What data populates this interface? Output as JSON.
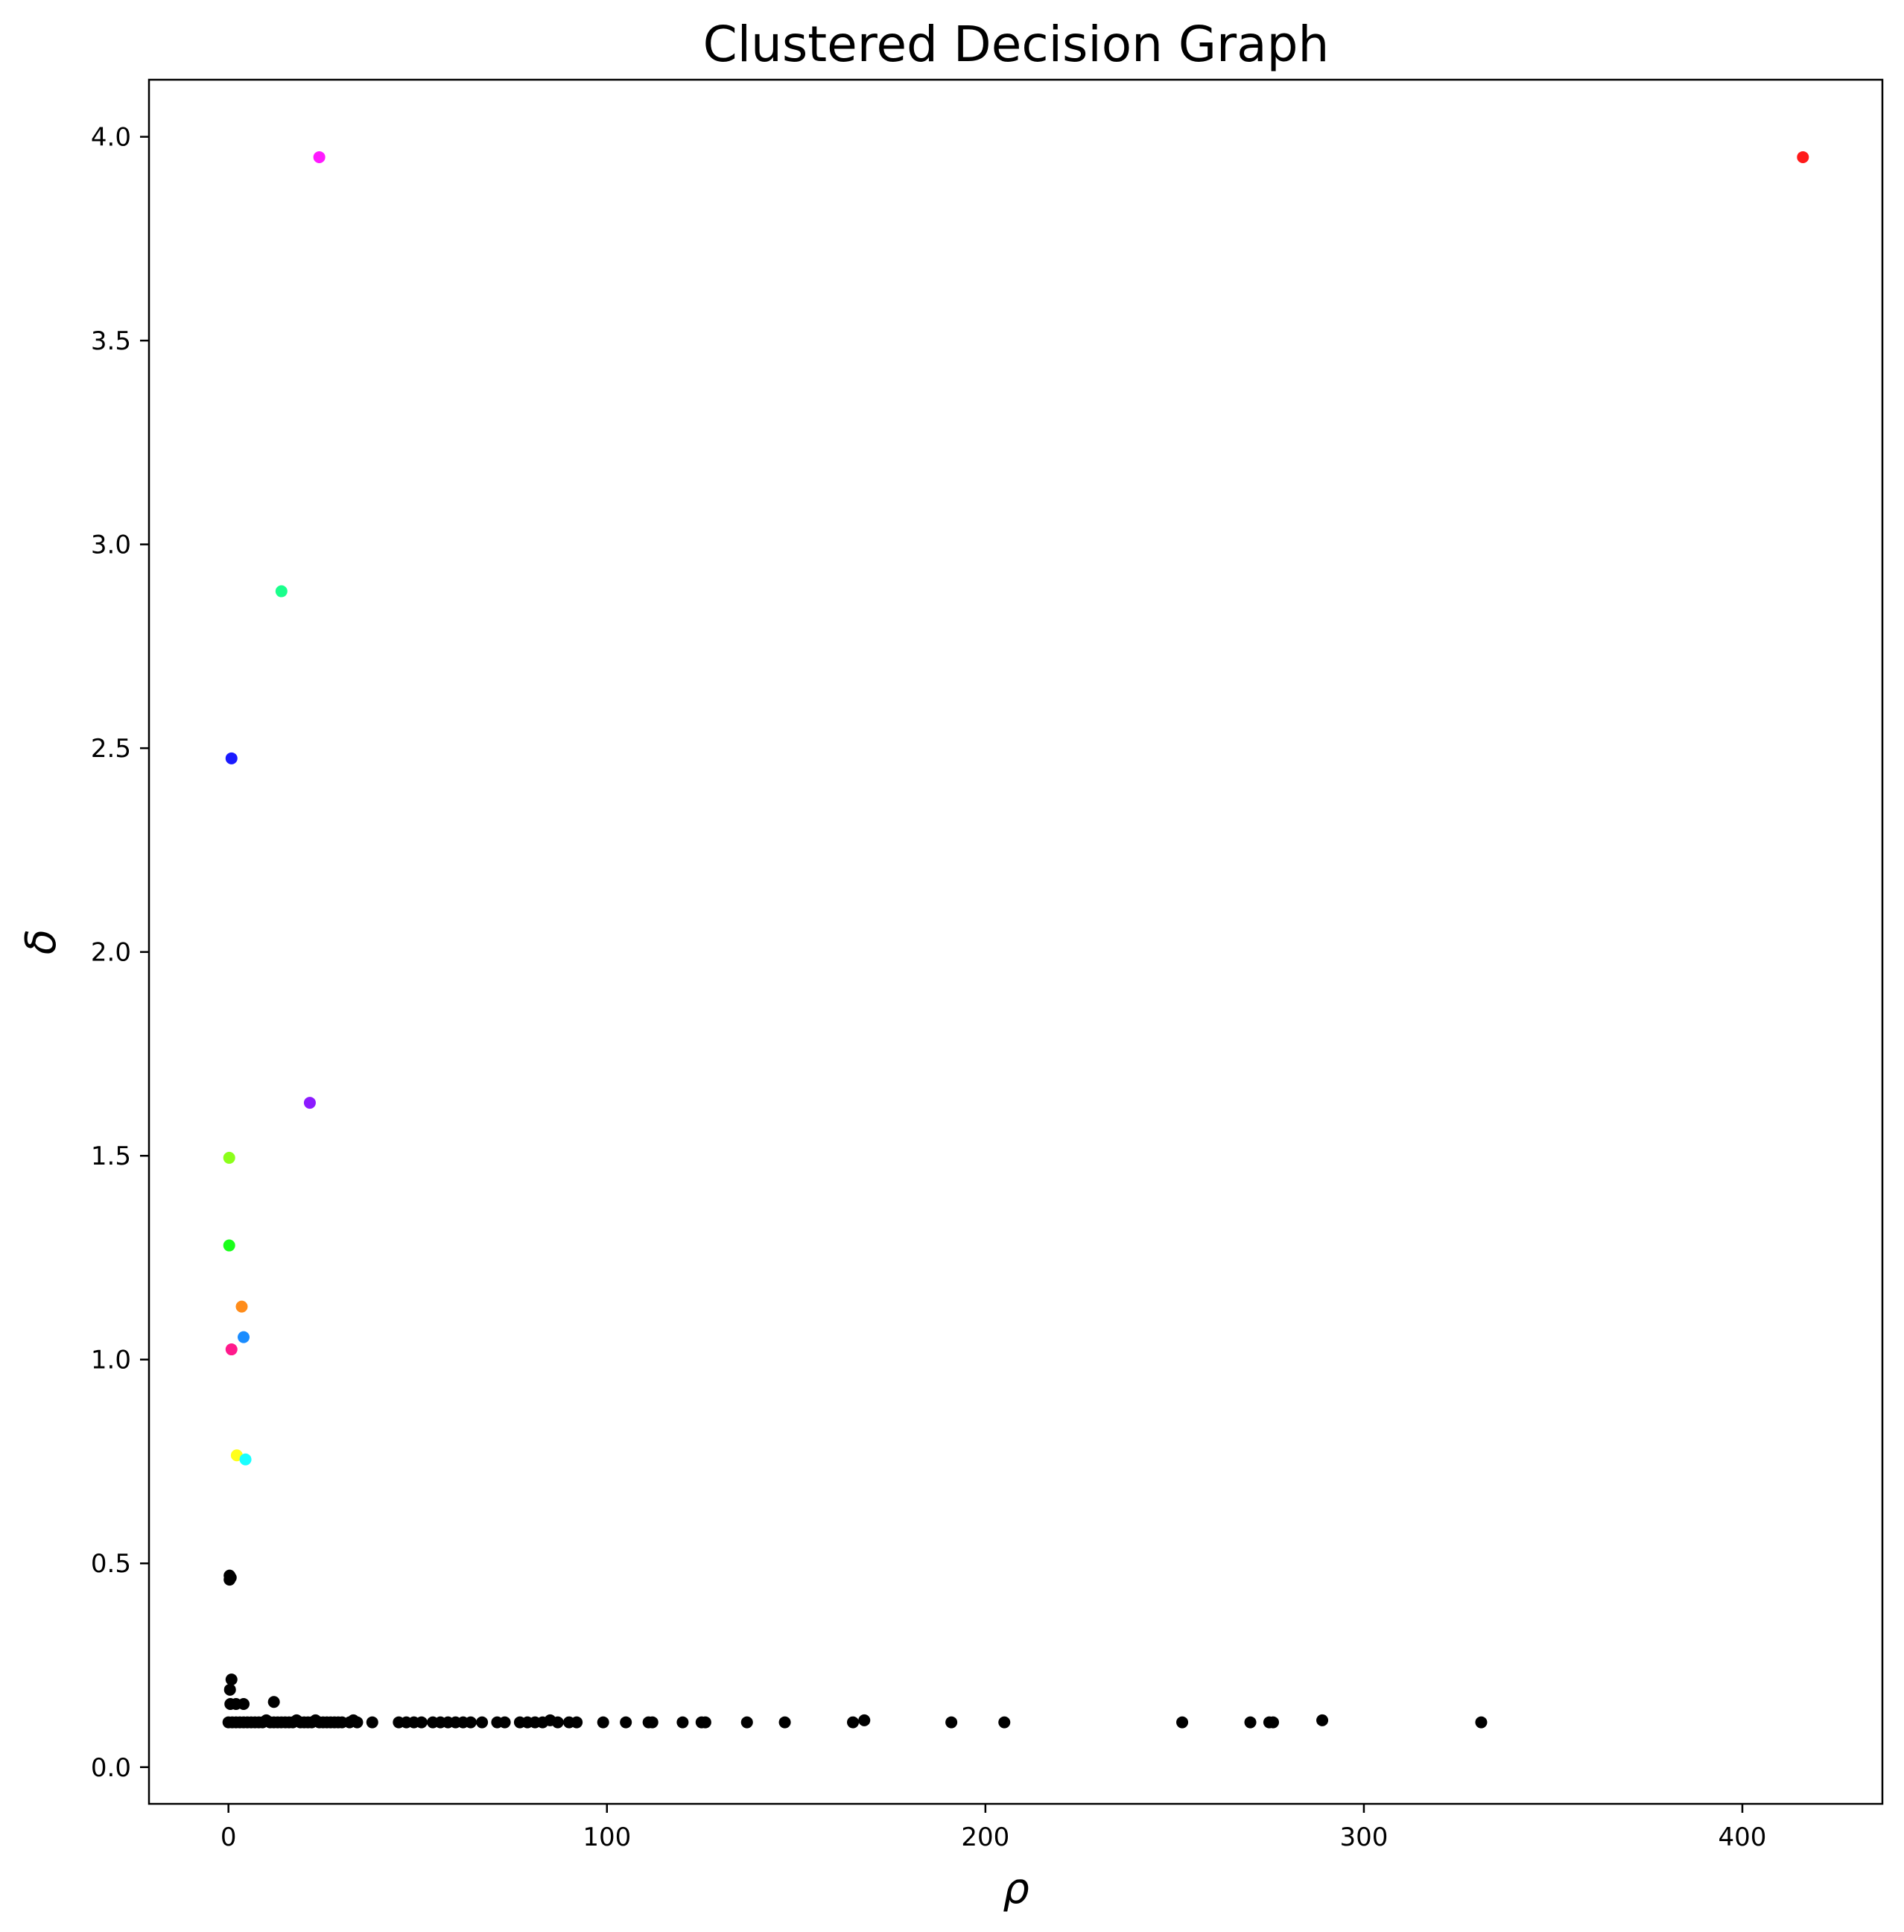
{
  "chart_data": {
    "type": "scatter",
    "title": "Clustered Decision Graph",
    "xlabel": "ρ",
    "ylabel": "δ",
    "xlim": [
      -21,
      437
    ],
    "ylim": [
      -0.09,
      4.14
    ],
    "x_ticks": [
      0,
      100,
      200,
      300,
      400
    ],
    "x_tick_labels": [
      "0",
      "100",
      "200",
      "300",
      "400"
    ],
    "y_ticks": [
      0.0,
      0.5,
      1.0,
      1.5,
      2.0,
      2.5,
      3.0,
      3.5,
      4.0
    ],
    "y_tick_labels": [
      "0.0",
      "0.5",
      "1.0",
      "1.5",
      "2.0",
      "2.5",
      "3.0",
      "3.5",
      "4.0"
    ],
    "grid": false,
    "cluster_centers": [
      {
        "x": 416,
        "y": 3.95,
        "color": "#ff1a1a"
      },
      {
        "x": 24,
        "y": 3.95,
        "color": "#ff1aff"
      },
      {
        "x": 14,
        "y": 2.885,
        "color": "#1aff8c"
      },
      {
        "x": 0.8,
        "y": 2.475,
        "color": "#1a1aff"
      },
      {
        "x": 21.5,
        "y": 1.63,
        "color": "#8c1aff"
      },
      {
        "x": 0.2,
        "y": 1.495,
        "color": "#8cff1a"
      },
      {
        "x": 0.2,
        "y": 1.28,
        "color": "#1aff1a"
      },
      {
        "x": 3.5,
        "y": 1.13,
        "color": "#ff8c1a"
      },
      {
        "x": 4.0,
        "y": 1.055,
        "color": "#1a8cff"
      },
      {
        "x": 0.8,
        "y": 1.025,
        "color": "#ff1a8c"
      },
      {
        "x": 2.2,
        "y": 0.765,
        "color": "#ffff1a"
      },
      {
        "x": 4.5,
        "y": 0.755,
        "color": "#1affff"
      }
    ],
    "other_points_color": "#000000",
    "other_points": [
      [
        0.3,
        0.47
      ],
      [
        0.3,
        0.46
      ],
      [
        0.6,
        0.465
      ],
      [
        0.8,
        0.215
      ],
      [
        0.4,
        0.19
      ],
      [
        0.5,
        0.155
      ],
      [
        2.0,
        0.155
      ],
      [
        4.0,
        0.155
      ],
      [
        12.0,
        0.16
      ],
      [
        0,
        0.11
      ],
      [
        1,
        0.11
      ],
      [
        2,
        0.11
      ],
      [
        3,
        0.11
      ],
      [
        4,
        0.11
      ],
      [
        5,
        0.11
      ],
      [
        6,
        0.11
      ],
      [
        7,
        0.11
      ],
      [
        8,
        0.11
      ],
      [
        9,
        0.11
      ],
      [
        10,
        0.115
      ],
      [
        11,
        0.11
      ],
      [
        12,
        0.11
      ],
      [
        13,
        0.11
      ],
      [
        14,
        0.11
      ],
      [
        15,
        0.11
      ],
      [
        16,
        0.11
      ],
      [
        17,
        0.11
      ],
      [
        18,
        0.115
      ],
      [
        19,
        0.11
      ],
      [
        20,
        0.11
      ],
      [
        21,
        0.11
      ],
      [
        22,
        0.11
      ],
      [
        23,
        0.115
      ],
      [
        24,
        0.11
      ],
      [
        25,
        0.11
      ],
      [
        26,
        0.11
      ],
      [
        27,
        0.11
      ],
      [
        28,
        0.11
      ],
      [
        29,
        0.11
      ],
      [
        30,
        0.11
      ],
      [
        32,
        0.11
      ],
      [
        33,
        0.115
      ],
      [
        34,
        0.11
      ],
      [
        38,
        0.11
      ],
      [
        45,
        0.11
      ],
      [
        47,
        0.11
      ],
      [
        49,
        0.11
      ],
      [
        51,
        0.11
      ],
      [
        54,
        0.11
      ],
      [
        56,
        0.11
      ],
      [
        58,
        0.11
      ],
      [
        60,
        0.11
      ],
      [
        62,
        0.11
      ],
      [
        64,
        0.11
      ],
      [
        67,
        0.11
      ],
      [
        71,
        0.11
      ],
      [
        73,
        0.11
      ],
      [
        77,
        0.11
      ],
      [
        79,
        0.11
      ],
      [
        81,
        0.11
      ],
      [
        83,
        0.11
      ],
      [
        85,
        0.115
      ],
      [
        87,
        0.11
      ],
      [
        90,
        0.11
      ],
      [
        92,
        0.11
      ],
      [
        99,
        0.11
      ],
      [
        105,
        0.11
      ],
      [
        111,
        0.11
      ],
      [
        112,
        0.11
      ],
      [
        120,
        0.11
      ],
      [
        125,
        0.11
      ],
      [
        126,
        0.11
      ],
      [
        137,
        0.11
      ],
      [
        147,
        0.11
      ],
      [
        165,
        0.11
      ],
      [
        168,
        0.115
      ],
      [
        191,
        0.11
      ],
      [
        205,
        0.11
      ],
      [
        252,
        0.11
      ],
      [
        270,
        0.11
      ],
      [
        275,
        0.11
      ],
      [
        276,
        0.11
      ],
      [
        289,
        0.115
      ],
      [
        331,
        0.11
      ]
    ]
  }
}
